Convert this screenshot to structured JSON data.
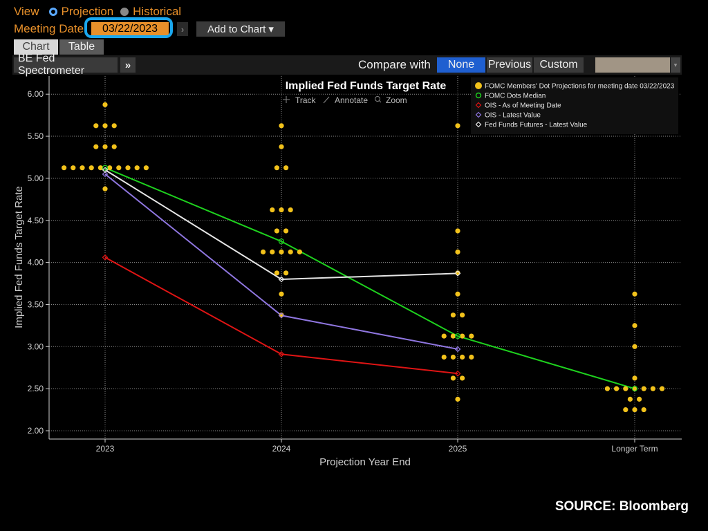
{
  "header": {
    "view_label": "View",
    "projection_label": "Projection",
    "historical_label": "Historical",
    "meeting_date_label": "Meeting Date",
    "meeting_date_value": "03/22/2023",
    "next_arrow": "›",
    "add_to_chart_label": "Add to Chart ▾"
  },
  "tabs": {
    "chart": "Chart",
    "table": "Table"
  },
  "toolbar": {
    "spectrometer_label": "BE Fed Spectrometer",
    "more_label": "»",
    "compare_label": "Compare with",
    "compare_options": [
      "None",
      "Previous",
      "Custom"
    ],
    "selected_compare": "None",
    "dropdown_arrow": "▾"
  },
  "chart_tools": {
    "track": "Track",
    "annotate": "Annotate",
    "zoom": "Zoom"
  },
  "source": "SOURCE: Bloomberg",
  "colors": {
    "dots": "#f2c21b",
    "median": "#1ed21e",
    "ois_meeting": "#e01414",
    "ois_latest": "#8f76e0",
    "futures": "#e6e6e6",
    "accent": "#e8902a",
    "selected": "#1f5fd0"
  },
  "chart_data": {
    "type": "scatter",
    "title": "Implied Fed Funds Target Rate",
    "xlabel": "Projection Year End",
    "ylabel": "Implied Fed Funds Target Rate",
    "categories": [
      "2023",
      "2024",
      "2025",
      "Longer Term"
    ],
    "ylim": [
      1.95,
      6.1
    ],
    "yticks": [
      2.0,
      2.5,
      3.0,
      3.5,
      4.0,
      4.5,
      5.0,
      5.5,
      6.0
    ],
    "ytick_labels": [
      "2.00",
      "2.50",
      "3.00",
      "3.50",
      "4.00",
      "4.50",
      "5.00",
      "5.50",
      "6.00"
    ],
    "grid": true,
    "legend_position": "top-right",
    "dots": [
      {
        "category": "2023",
        "rates": [
          {
            "rate": 5.875,
            "count": 1
          },
          {
            "rate": 5.625,
            "count": 3
          },
          {
            "rate": 5.375,
            "count": 3
          },
          {
            "rate": 5.125,
            "count": 10
          },
          {
            "rate": 4.875,
            "count": 1
          }
        ]
      },
      {
        "category": "2024",
        "rates": [
          {
            "rate": 5.625,
            "count": 1
          },
          {
            "rate": 5.375,
            "count": 1
          },
          {
            "rate": 5.125,
            "count": 2
          },
          {
            "rate": 4.625,
            "count": 3
          },
          {
            "rate": 4.375,
            "count": 2
          },
          {
            "rate": 4.125,
            "count": 5
          },
          {
            "rate": 3.875,
            "count": 2
          },
          {
            "rate": 3.625,
            "count": 1
          },
          {
            "rate": 3.375,
            "count": 1
          }
        ]
      },
      {
        "category": "2025",
        "rates": [
          {
            "rate": 5.625,
            "count": 1
          },
          {
            "rate": 4.375,
            "count": 1
          },
          {
            "rate": 4.125,
            "count": 1
          },
          {
            "rate": 3.875,
            "count": 1
          },
          {
            "rate": 3.625,
            "count": 1
          },
          {
            "rate": 3.375,
            "count": 2
          },
          {
            "rate": 3.125,
            "count": 4
          },
          {
            "rate": 2.875,
            "count": 4
          },
          {
            "rate": 2.625,
            "count": 2
          },
          {
            "rate": 2.375,
            "count": 1
          }
        ]
      },
      {
        "category": "Longer Term",
        "rates": [
          {
            "rate": 3.625,
            "count": 1
          },
          {
            "rate": 3.25,
            "count": 1
          },
          {
            "rate": 3.0,
            "count": 1
          },
          {
            "rate": 2.625,
            "count": 1
          },
          {
            "rate": 2.5,
            "count": 7
          },
          {
            "rate": 2.375,
            "count": 2
          },
          {
            "rate": 2.25,
            "count": 3
          }
        ]
      }
    ],
    "series": [
      {
        "name": "FOMC Members' Dot Projections for meeting date 03/22/2023",
        "type": "dots"
      },
      {
        "name": "FOMC Dots Median",
        "type": "line",
        "values": [
          5.125,
          4.25,
          3.125,
          2.5
        ]
      },
      {
        "name": "OIS - As of Meeting Date",
        "type": "line",
        "values": [
          4.06,
          2.91,
          2.68,
          null
        ]
      },
      {
        "name": "OIS - Latest Value",
        "type": "line",
        "values": [
          5.05,
          3.37,
          2.97,
          null
        ]
      },
      {
        "name": "Fed Funds Futures - Latest Value",
        "type": "line",
        "values": [
          5.1,
          3.8,
          3.87,
          null
        ]
      }
    ]
  }
}
